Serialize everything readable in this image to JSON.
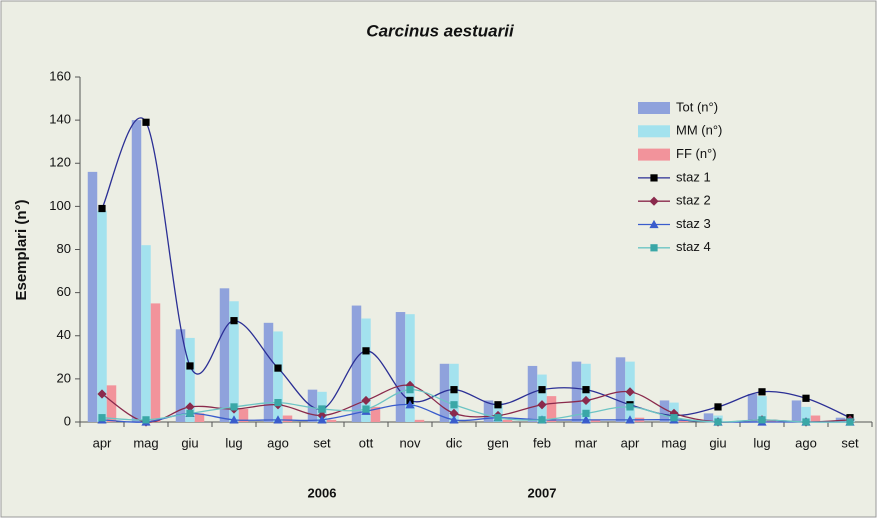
{
  "chart_data": {
    "type": "bar",
    "title": "Carcinus aestuarii",
    "y_label": "Esemplari (n°)",
    "categories": [
      "apr",
      "mag",
      "giu",
      "lug",
      "ago",
      "set",
      "ott",
      "nov",
      "dic",
      "gen",
      "feb",
      "mar",
      "apr",
      "mag",
      "giu",
      "lug",
      "ago",
      "set"
    ],
    "year_labels": [
      "2006",
      "2007"
    ],
    "ylim": [
      0,
      160
    ],
    "yticks": [
      0,
      20,
      40,
      60,
      80,
      100,
      120,
      140,
      160
    ],
    "legend": "right",
    "series": [
      {
        "name": "Tot (n°)",
        "type": "bar",
        "color": "#8fa2dc",
        "values": [
          116,
          140,
          43,
          62,
          46,
          15,
          54,
          51,
          27,
          10,
          26,
          28,
          30,
          10,
          4,
          13,
          10,
          2
        ]
      },
      {
        "name": "MM (n°)",
        "type": "bar",
        "color": "#a3e2ee",
        "values": [
          98,
          82,
          39,
          56,
          42,
          14,
          48,
          50,
          27,
          9,
          22,
          27,
          28,
          9,
          3,
          12,
          7,
          2
        ]
      },
      {
        "name": "FF (n°)",
        "type": "bar",
        "color": "#f2939b",
        "values": [
          17,
          55,
          4,
          6,
          3,
          1,
          7,
          1,
          0,
          1,
          12,
          1,
          2,
          1,
          0,
          1,
          3,
          0
        ]
      },
      {
        "name": "staz 1",
        "type": "line",
        "marker": "square",
        "marker_color": "#000000",
        "color": "#2b2f95",
        "values": [
          99,
          139,
          26,
          47,
          25,
          6,
          33,
          10,
          15,
          8,
          15,
          15,
          8,
          3,
          7,
          14,
          11,
          2
        ]
      },
      {
        "name": "staz 2",
        "type": "line",
        "marker": "diamond",
        "marker_color": "#8a2a4c",
        "color": "#8a2a4c",
        "values": [
          13,
          0,
          7,
          6,
          8,
          3,
          10,
          17,
          4,
          3,
          8,
          10,
          14,
          4,
          0,
          1,
          0,
          1
        ]
      },
      {
        "name": "staz 3",
        "type": "line",
        "marker": "triangle",
        "marker_color": "#3a5ccc",
        "color": "#3a5ccc",
        "values": [
          1,
          0,
          4,
          1,
          1,
          1,
          5,
          8,
          1,
          2,
          1,
          1,
          1,
          1,
          0,
          0,
          0,
          0
        ]
      },
      {
        "name": "staz 4",
        "type": "line",
        "marker": "square",
        "marker_color": "#3aa7a7",
        "color": "#6cc4c4",
        "values": [
          2,
          1,
          4,
          7,
          9,
          6,
          6,
          15,
          8,
          2,
          1,
          4,
          7,
          2,
          0,
          1,
          0,
          0
        ]
      }
    ]
  }
}
